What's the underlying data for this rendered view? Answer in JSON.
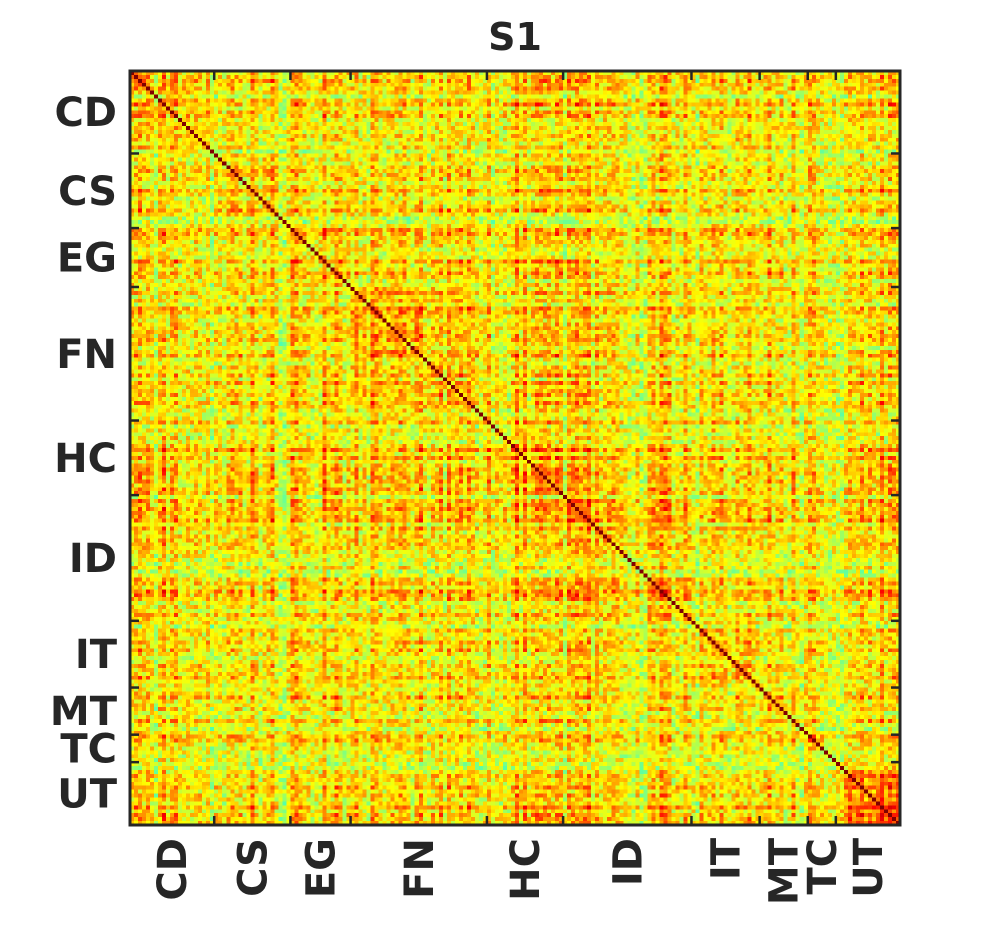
{
  "chart_data": {
    "type": "heatmap",
    "title": "S1",
    "xlabel": "",
    "ylabel": "",
    "matrix_size": 192,
    "groups": [
      {
        "label": "CD",
        "start": 0,
        "end": 21
      },
      {
        "label": "CS",
        "start": 21,
        "end": 40
      },
      {
        "label": "EG",
        "start": 40,
        "end": 55
      },
      {
        "label": "FN",
        "start": 55,
        "end": 89
      },
      {
        "label": "HC",
        "start": 89,
        "end": 108
      },
      {
        "label": "ID",
        "start": 108,
        "end": 140
      },
      {
        "label": "IT",
        "start": 140,
        "end": 157
      },
      {
        "label": "MT",
        "start": 157,
        "end": 169
      },
      {
        "label": "TC",
        "start": 169,
        "end": 176
      },
      {
        "label": "UT",
        "start": 176,
        "end": 192
      }
    ],
    "colormap": "jet",
    "clim": [
      -1,
      1
    ],
    "diagonal_value": 1,
    "grid": false
  }
}
